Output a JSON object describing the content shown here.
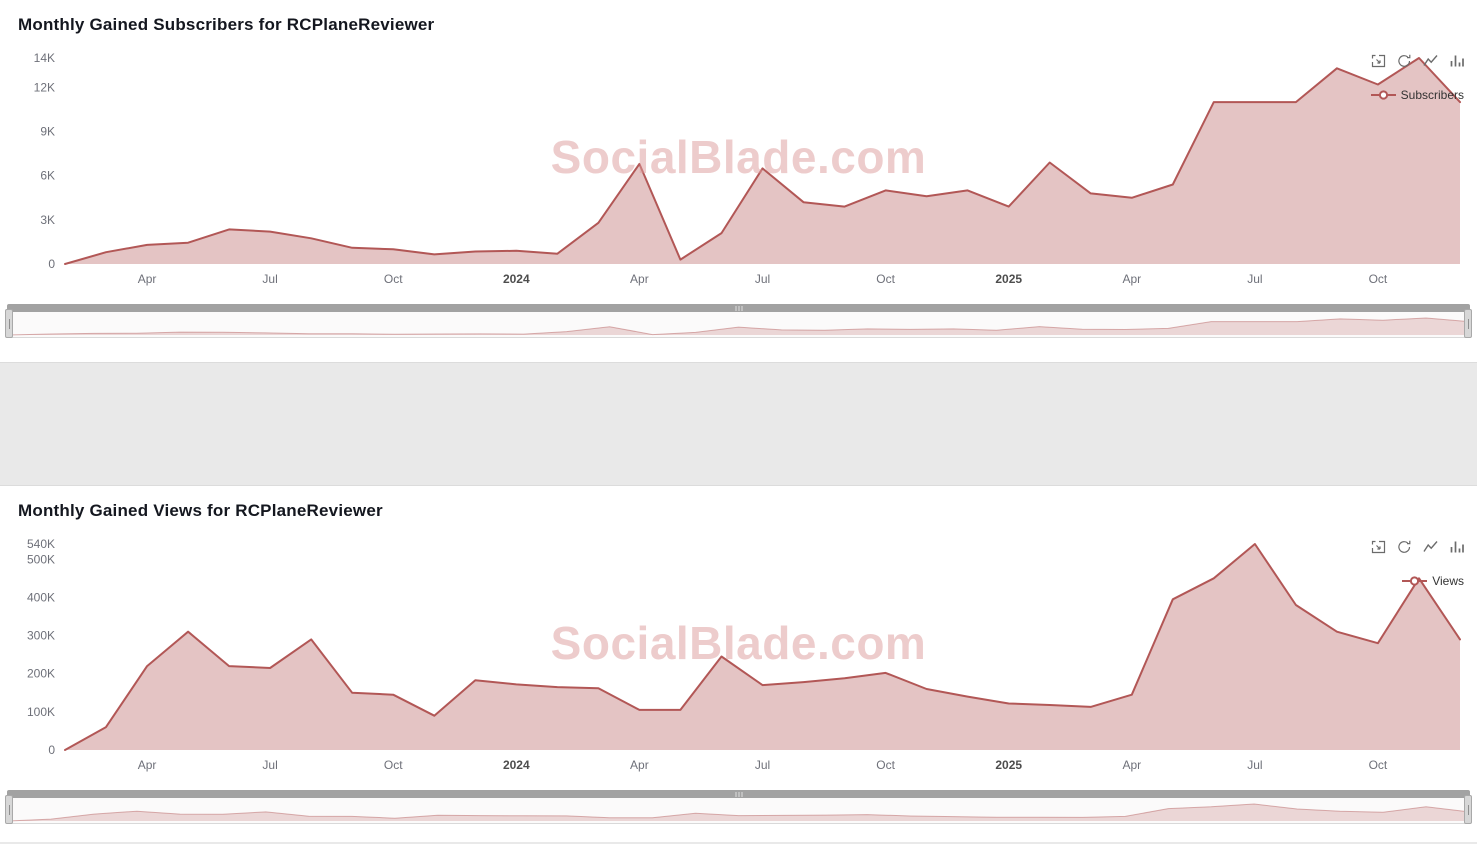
{
  "watermark": "SocialBlade.com",
  "toolbox_icons": [
    "zoom-select-icon",
    "restore-icon",
    "line-chart-icon",
    "bar-chart-icon"
  ],
  "chart_data": [
    {
      "type": "area",
      "title": "Monthly Gained Subscribers for RCPlaneReviewer",
      "legend": "Subscribers",
      "line_color": "#b25756",
      "fill_color": "rgba(178,87,86,0.35)",
      "grid": false,
      "legend_position": "top-right",
      "ylim": [
        0,
        14000
      ],
      "y_ticks": [
        {
          "value": 0,
          "label": "0"
        },
        {
          "value": 3000,
          "label": "3K"
        },
        {
          "value": 6000,
          "label": "6K"
        },
        {
          "value": 9000,
          "label": "9K"
        },
        {
          "value": 12000,
          "label": "12K"
        },
        {
          "value": 14000,
          "label": "14K"
        }
      ],
      "x_ticks": [
        {
          "index": 2,
          "label": "Apr",
          "bold": false
        },
        {
          "index": 5,
          "label": "Jul",
          "bold": false
        },
        {
          "index": 8,
          "label": "Oct",
          "bold": false
        },
        {
          "index": 11,
          "label": "2024",
          "bold": true
        },
        {
          "index": 14,
          "label": "Apr",
          "bold": false
        },
        {
          "index": 17,
          "label": "Jul",
          "bold": false
        },
        {
          "index": 20,
          "label": "Oct",
          "bold": false
        },
        {
          "index": 23,
          "label": "2025",
          "bold": true
        },
        {
          "index": 26,
          "label": "Apr",
          "bold": false
        },
        {
          "index": 29,
          "label": "Jul",
          "bold": false
        },
        {
          "index": 32,
          "label": "Oct",
          "bold": false
        }
      ],
      "x": [
        "Feb 2023",
        "Mar 2023",
        "Apr 2023",
        "May 2023",
        "Jun 2023",
        "Jul 2023",
        "Aug 2023",
        "Sep 2023",
        "Oct 2023",
        "Nov 2023",
        "Dec 2023",
        "Jan 2024",
        "Feb 2024",
        "Mar 2024",
        "Apr 2024",
        "May 2024",
        "Jun 2024",
        "Jul 2024",
        "Aug 2024",
        "Sep 2024",
        "Oct 2024",
        "Nov 2024",
        "Dec 2024",
        "Jan 2025",
        "Feb 2025",
        "Mar 2025",
        "Apr 2025",
        "May 2025",
        "Jun 2025",
        "Jul 2025",
        "Aug 2025",
        "Sep 2025",
        "Oct 2025",
        "Nov 2025",
        "Dec 2025"
      ],
      "values": [
        0,
        800,
        1300,
        1450,
        2350,
        2200,
        1750,
        1100,
        1000,
        650,
        850,
        900,
        700,
        2800,
        6800,
        300,
        2100,
        6500,
        4200,
        3900,
        5000,
        4600,
        5000,
        3900,
        6900,
        4800,
        4500,
        5400,
        11000,
        11000,
        11000,
        13300,
        12200,
        14000,
        11000
      ]
    },
    {
      "type": "area",
      "title": "Monthly Gained Views for RCPlaneReviewer",
      "legend": "Views",
      "line_color": "#b25756",
      "fill_color": "rgba(178,87,86,0.35)",
      "grid": false,
      "legend_position": "top-right",
      "ylim": [
        0,
        540000
      ],
      "y_ticks": [
        {
          "value": 0,
          "label": "0"
        },
        {
          "value": 100000,
          "label": "100K"
        },
        {
          "value": 200000,
          "label": "200K"
        },
        {
          "value": 300000,
          "label": "300K"
        },
        {
          "value": 400000,
          "label": "400K"
        },
        {
          "value": 500000,
          "label": "500K"
        },
        {
          "value": 540000,
          "label": "540K"
        }
      ],
      "x_ticks": [
        {
          "index": 2,
          "label": "Apr",
          "bold": false
        },
        {
          "index": 5,
          "label": "Jul",
          "bold": false
        },
        {
          "index": 8,
          "label": "Oct",
          "bold": false
        },
        {
          "index": 11,
          "label": "2024",
          "bold": true
        },
        {
          "index": 14,
          "label": "Apr",
          "bold": false
        },
        {
          "index": 17,
          "label": "Jul",
          "bold": false
        },
        {
          "index": 20,
          "label": "Oct",
          "bold": false
        },
        {
          "index": 23,
          "label": "2025",
          "bold": true
        },
        {
          "index": 26,
          "label": "Apr",
          "bold": false
        },
        {
          "index": 29,
          "label": "Jul",
          "bold": false
        },
        {
          "index": 32,
          "label": "Oct",
          "bold": false
        }
      ],
      "x": [
        "Feb 2023",
        "Mar 2023",
        "Apr 2023",
        "May 2023",
        "Jun 2023",
        "Jul 2023",
        "Aug 2023",
        "Sep 2023",
        "Oct 2023",
        "Nov 2023",
        "Dec 2023",
        "Jan 2024",
        "Feb 2024",
        "Mar 2024",
        "Apr 2024",
        "May 2024",
        "Jun 2024",
        "Jul 2024",
        "Aug 2024",
        "Sep 2024",
        "Oct 2024",
        "Nov 2024",
        "Dec 2024",
        "Jan 2025",
        "Feb 2025",
        "Mar 2025",
        "Apr 2025",
        "May 2025",
        "Jun 2025",
        "Jul 2025",
        "Aug 2025",
        "Sep 2025",
        "Oct 2025",
        "Nov 2025",
        "Dec 2025"
      ],
      "values": [
        0,
        60000,
        220000,
        310000,
        220000,
        215000,
        290000,
        150000,
        145000,
        90000,
        183000,
        172000,
        165000,
        162000,
        105000,
        105000,
        245000,
        170000,
        178000,
        188000,
        202000,
        160000,
        140000,
        122000,
        118000,
        113000,
        145000,
        395000,
        450000,
        540000,
        380000,
        310000,
        280000,
        450000,
        290000
      ]
    }
  ]
}
